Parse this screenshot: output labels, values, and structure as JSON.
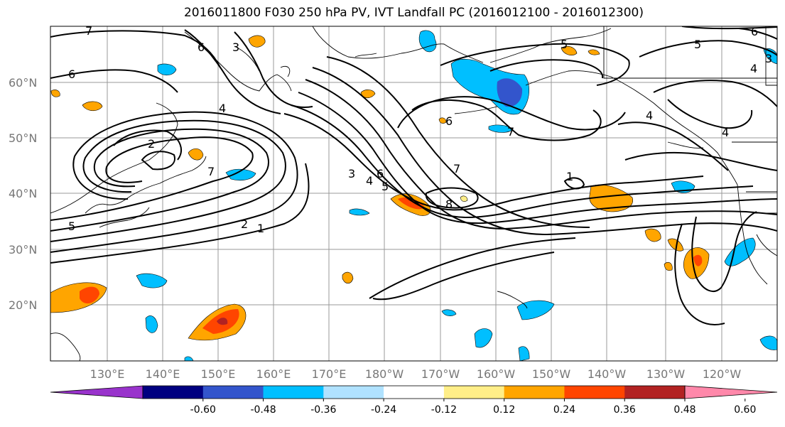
{
  "title": "2016011800 F030 250 hPa PV, IVT Landfall PC (2016012100 - 2016012300)",
  "lat_labels": [
    "60°N",
    "50°N",
    "40°N",
    "30°N",
    "20°N"
  ],
  "lon_labels": [
    "130°E",
    "140°E",
    "150°E",
    "160°E",
    "170°E",
    "180°W",
    "170°W",
    "160°W",
    "150°W",
    "140°W",
    "130°W",
    "120°W"
  ],
  "colorbar": {
    "colors": [
      "#9933cc",
      "#000080",
      "#3355cc",
      "#00bfff",
      "#b0e2ff",
      "#ffffff",
      "#ffee88",
      "#ffa500",
      "#ff4500",
      "#b22222",
      "#ff88aa"
    ],
    "labels": [
      "-0.60",
      "-0.48",
      "-0.36",
      "-0.24",
      "-0.12",
      "0.12",
      "0.24",
      "0.36",
      "0.48",
      "0.60"
    ]
  },
  "contour_labels": [
    "7",
    "6",
    "5",
    "4",
    "3",
    "2",
    "1",
    "8"
  ]
}
